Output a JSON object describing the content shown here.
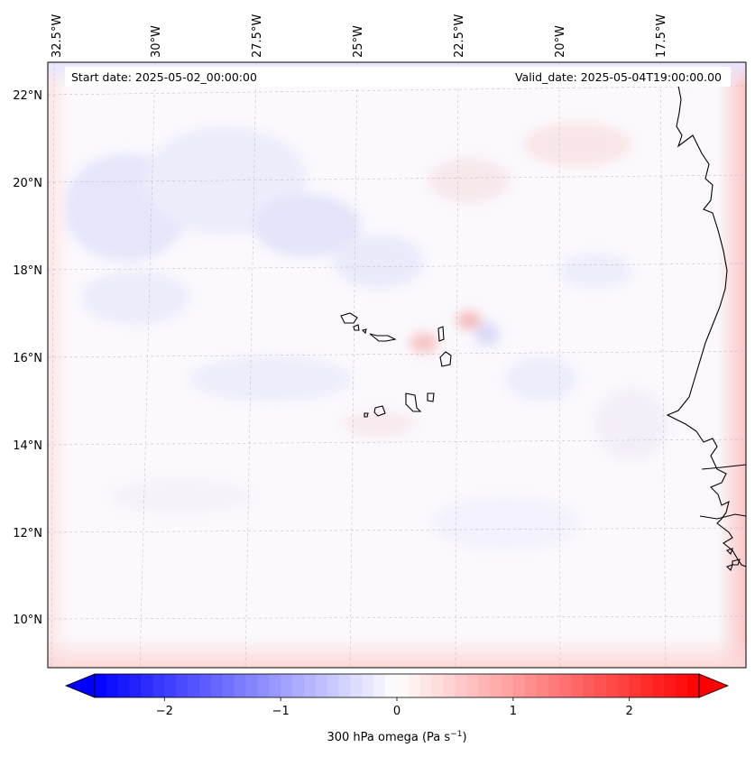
{
  "header": {
    "start_date": "Start date: 2025-05-02_00:00:00",
    "valid_date": "Valid_date: 2025-05-04T19:00:00.00"
  },
  "map": {
    "lon_labels": [
      "32.5°W",
      "30°W",
      "27.5°W",
      "25°W",
      "22.5°W",
      "20°W",
      "17.5°W"
    ],
    "lat_labels": [
      "22°N",
      "20°N",
      "18°N",
      "16°N",
      "14°N",
      "12°N",
      "10°N"
    ],
    "gridlines": "dashed"
  },
  "colorbar": {
    "label": "300 hPa omega (Pa s",
    "label_sup": "−1",
    "label_end": ")",
    "min": -2.6,
    "max": 2.6,
    "ticks": [
      "−2",
      "−1",
      "0",
      "1",
      "2"
    ],
    "tick_values": [
      -2,
      -1,
      0,
      1,
      2
    ],
    "colors": {
      "low": "#0000ff",
      "mid": "#ffffff",
      "high": "#ff0000"
    },
    "extend": "both"
  }
}
